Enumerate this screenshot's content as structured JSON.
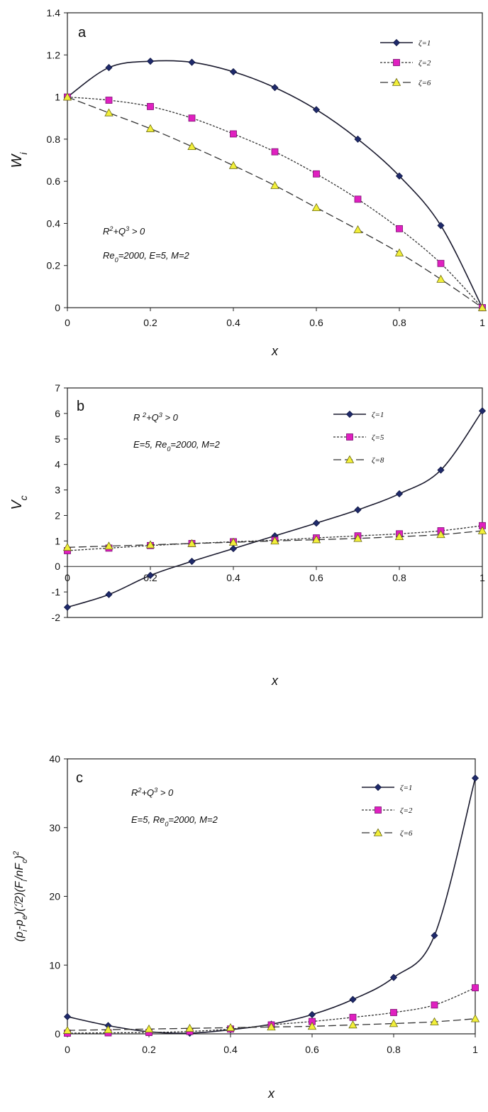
{
  "chart_data": [
    {
      "type": "line",
      "panel_label": "a",
      "xlabel": "x",
      "ylabel": "W",
      "ylabel_sub": "i",
      "xlim": [
        0,
        1
      ],
      "ylim": [
        0,
        1.4
      ],
      "xticks": [
        "0",
        "0.2",
        "0.4",
        "0.6",
        "0.8",
        "1"
      ],
      "yticks": [
        "0",
        "0.2",
        "0.4",
        "0.6",
        "0.8",
        "1",
        "1.2",
        "1.4"
      ],
      "annotations": [
        {
          "id": "l1",
          "parts": [
            {
              "t": "R"
            },
            {
              "t": "2",
              "sup": true
            },
            {
              "t": "+Q"
            },
            {
              "t": "3",
              "sup": true
            },
            {
              "t": " > 0"
            }
          ]
        },
        {
          "id": "l2",
          "parts": [
            {
              "t": "Re"
            },
            {
              "t": "0",
              "sub": true
            },
            {
              "t": "=2000, E=5, M=2"
            }
          ]
        }
      ],
      "legend_position": "top-right",
      "series": [
        {
          "name": "ζ=1",
          "style": "solid",
          "marker": "diamond",
          "color": "#1a1a2e",
          "marker_color": "#1f2a6b",
          "x": [
            0,
            0.1,
            0.2,
            0.3,
            0.4,
            0.5,
            0.6,
            0.7,
            0.8,
            0.9,
            1
          ],
          "values": [
            1.0,
            1.14,
            1.17,
            1.165,
            1.12,
            1.045,
            0.94,
            0.8,
            0.625,
            0.39,
            0.0
          ]
        },
        {
          "name": "ζ=2",
          "style": "dotted",
          "marker": "square",
          "color": "#333333",
          "marker_color": "#e020c0",
          "x": [
            0,
            0.1,
            0.2,
            0.3,
            0.4,
            0.5,
            0.6,
            0.7,
            0.8,
            0.9,
            1
          ],
          "values": [
            1.0,
            0.985,
            0.955,
            0.9,
            0.825,
            0.74,
            0.635,
            0.515,
            0.375,
            0.21,
            0.0
          ]
        },
        {
          "name": "ζ=6",
          "style": "dashed",
          "marker": "triangle",
          "color": "#333333",
          "marker_color": "#f2ef3a",
          "x": [
            0,
            0.1,
            0.2,
            0.3,
            0.4,
            0.5,
            0.6,
            0.7,
            0.8,
            0.9,
            1
          ],
          "values": [
            1.0,
            0.925,
            0.85,
            0.765,
            0.675,
            0.58,
            0.475,
            0.37,
            0.26,
            0.135,
            0.0
          ]
        }
      ]
    },
    {
      "type": "line",
      "panel_label": "b",
      "xlabel": "x",
      "ylabel": "V",
      "ylabel_sub": "c",
      "xlim": [
        0,
        1
      ],
      "ylim": [
        -2,
        7
      ],
      "xticks": [
        "0",
        "0.2",
        "0.4",
        "0.6",
        "0.8",
        "1"
      ],
      "yticks": [
        "-2",
        "-1",
        "0",
        "1",
        "2",
        "3",
        "4",
        "5",
        "6",
        "7"
      ],
      "annotations": [
        {
          "id": "l1",
          "parts": [
            {
              "t": "R "
            },
            {
              "t": "2",
              "sup": true
            },
            {
              "t": "+Q"
            },
            {
              "t": "3",
              "sup": true
            },
            {
              "t": " >  0"
            }
          ]
        },
        {
          "id": "l2",
          "parts": [
            {
              "t": "E=5, Re"
            },
            {
              "t": "0",
              "sub": true
            },
            {
              "t": "=2000, M=2"
            }
          ]
        }
      ],
      "legend_position": "top-right",
      "series": [
        {
          "name": "ζ=1",
          "style": "solid",
          "marker": "diamond",
          "color": "#1a1a2e",
          "marker_color": "#1f2a6b",
          "x": [
            0,
            0.1,
            0.2,
            0.3,
            0.4,
            0.5,
            0.6,
            0.7,
            0.8,
            0.9,
            1
          ],
          "values": [
            -1.6,
            -1.1,
            -0.35,
            0.2,
            0.7,
            1.2,
            1.7,
            2.22,
            2.85,
            3.78,
            6.1
          ]
        },
        {
          "name": "ζ=5",
          "style": "dotted",
          "marker": "square",
          "color": "#333333",
          "marker_color": "#e020c0",
          "x": [
            0,
            0.1,
            0.2,
            0.3,
            0.4,
            0.5,
            0.6,
            0.7,
            0.8,
            0.9,
            1
          ],
          "values": [
            0.62,
            0.72,
            0.82,
            0.9,
            0.97,
            1.03,
            1.12,
            1.2,
            1.28,
            1.4,
            1.6
          ]
        },
        {
          "name": "ζ=8",
          "style": "dashed",
          "marker": "triangle",
          "color": "#333333",
          "marker_color": "#f2ef3a",
          "x": [
            0,
            0.1,
            0.2,
            0.3,
            0.4,
            0.5,
            0.6,
            0.7,
            0.8,
            0.9,
            1
          ],
          "values": [
            0.75,
            0.8,
            0.85,
            0.9,
            0.95,
            1.0,
            1.05,
            1.1,
            1.17,
            1.25,
            1.4
          ]
        }
      ]
    },
    {
      "type": "line",
      "panel_label": "c",
      "xlabel": "x",
      "ylabel_parts": [
        {
          "t": "(p"
        },
        {
          "t": "i",
          "sub": true
        },
        {
          "t": "-p"
        },
        {
          "t": "e",
          "sub": true
        },
        {
          "t": ")(ℐ2)(F"
        },
        {
          "t": "i",
          "sub": true
        },
        {
          "t": "/nF"
        },
        {
          "t": "c",
          "sub": true
        },
        {
          "t": ")"
        },
        {
          "t": "2",
          "sup": true
        }
      ],
      "xlim": [
        0,
        1
      ],
      "ylim": [
        0,
        40
      ],
      "xticks": [
        "0",
        "0.2",
        "0.4",
        "0.6",
        "0.8",
        "1"
      ],
      "yticks": [
        "0",
        "10",
        "20",
        "30",
        "40"
      ],
      "annotations": [
        {
          "id": "l1",
          "parts": [
            {
              "t": "R"
            },
            {
              "t": "2",
              "sup": true
            },
            {
              "t": "+Q"
            },
            {
              "t": "3",
              "sup": true
            },
            {
              "t": " > 0"
            }
          ]
        },
        {
          "id": "l2",
          "parts": [
            {
              "t": "E=5, Re"
            },
            {
              "t": "0",
              "sub": true
            },
            {
              "t": "=2000, M=2"
            }
          ]
        }
      ],
      "legend_position": "top-right",
      "series": [
        {
          "name": "ζ=1",
          "style": "solid",
          "marker": "diamond",
          "color": "#1a1a2e",
          "marker_color": "#1f2a6b",
          "x": [
            0,
            0.1,
            0.2,
            0.3,
            0.4,
            0.5,
            0.6,
            0.7,
            0.8,
            0.9,
            1
          ],
          "values": [
            2.5,
            1.2,
            0.3,
            0.1,
            0.6,
            1.4,
            2.8,
            5.0,
            8.2,
            14.3,
            37.2
          ]
        },
        {
          "name": "ζ=2",
          "style": "dotted",
          "marker": "square",
          "color": "#333333",
          "marker_color": "#e020c0",
          "x": [
            0,
            0.1,
            0.2,
            0.3,
            0.4,
            0.5,
            0.6,
            0.7,
            0.8,
            0.9,
            1
          ],
          "values": [
            0.1,
            0.15,
            0.2,
            0.35,
            0.7,
            1.3,
            1.8,
            2.4,
            3.1,
            4.2,
            6.7
          ]
        },
        {
          "name": "ζ=6",
          "style": "dashed",
          "marker": "triangle",
          "color": "#333333",
          "marker_color": "#f2ef3a",
          "x": [
            0,
            0.1,
            0.2,
            0.3,
            0.4,
            0.5,
            0.6,
            0.7,
            0.8,
            0.9,
            1
          ],
          "values": [
            0.5,
            0.6,
            0.7,
            0.8,
            0.9,
            1.0,
            1.1,
            1.3,
            1.5,
            1.75,
            2.2
          ]
        }
      ]
    }
  ]
}
